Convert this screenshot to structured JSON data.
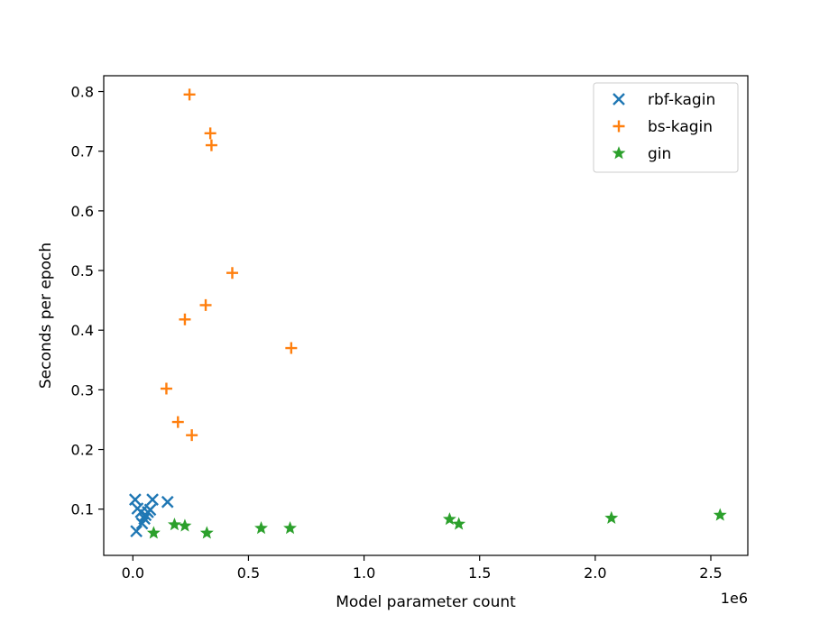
{
  "chart_data": {
    "type": "scatter",
    "title": "",
    "xlabel": "Model parameter count",
    "ylabel": "Seconds per epoch",
    "x_offset_label": "1e6",
    "xlim": [
      -0.126,
      2.66
    ],
    "ylim": [
      0.0225,
      0.8265
    ],
    "x_ticks": [
      0.0,
      0.5,
      1.0,
      1.5,
      2.0,
      2.5
    ],
    "x_tick_labels": [
      "0.0",
      "0.5",
      "1.0",
      "1.5",
      "2.0",
      "2.5"
    ],
    "y_ticks": [
      0.1,
      0.2,
      0.3,
      0.4,
      0.5,
      0.6,
      0.7,
      0.8
    ],
    "y_tick_labels": [
      "0.1",
      "0.2",
      "0.3",
      "0.4",
      "0.5",
      "0.6",
      "0.7",
      "0.8"
    ],
    "grid": false,
    "legend_position": "top-right",
    "series": [
      {
        "name": "rbf-kagin",
        "marker": "x",
        "color": "#1f77b4",
        "points": [
          [
            0.01,
            0.116
          ],
          [
            0.015,
            0.063
          ],
          [
            0.02,
            0.101
          ],
          [
            0.035,
            0.095
          ],
          [
            0.04,
            0.076
          ],
          [
            0.05,
            0.084
          ],
          [
            0.055,
            0.09
          ],
          [
            0.065,
            0.095
          ],
          [
            0.075,
            0.099
          ],
          [
            0.085,
            0.116
          ],
          [
            0.15,
            0.112
          ]
        ]
      },
      {
        "name": "bs-kagin",
        "marker": "+",
        "color": "#ff7f0e",
        "points": [
          [
            0.145,
            0.302
          ],
          [
            0.195,
            0.246
          ],
          [
            0.225,
            0.418
          ],
          [
            0.245,
            0.795
          ],
          [
            0.255,
            0.224
          ],
          [
            0.315,
            0.442
          ],
          [
            0.335,
            0.73
          ],
          [
            0.34,
            0.71
          ],
          [
            0.43,
            0.496
          ],
          [
            0.685,
            0.37
          ]
        ]
      },
      {
        "name": "gin",
        "marker": "*",
        "color": "#2ca02c",
        "points": [
          [
            0.09,
            0.06
          ],
          [
            0.18,
            0.074
          ],
          [
            0.225,
            0.072
          ],
          [
            0.32,
            0.06
          ],
          [
            0.555,
            0.068
          ],
          [
            0.68,
            0.068
          ],
          [
            1.37,
            0.083
          ],
          [
            1.41,
            0.075
          ],
          [
            2.07,
            0.085
          ],
          [
            2.54,
            0.09
          ]
        ]
      }
    ]
  }
}
